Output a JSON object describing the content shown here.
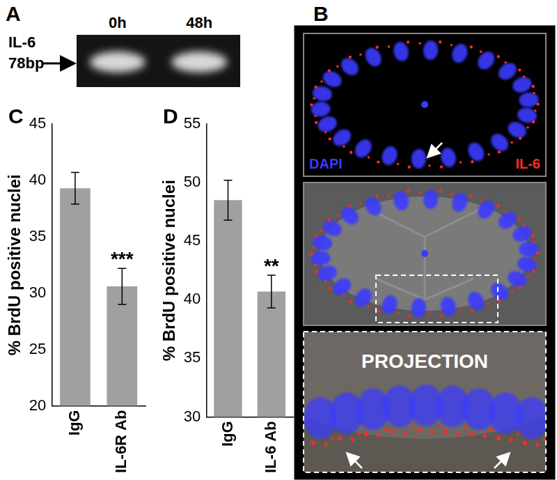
{
  "panels": {
    "A": {
      "label": "A",
      "gene": "IL-6",
      "size": "78bp",
      "lanes": [
        "0h",
        "48h"
      ]
    },
    "B": {
      "label": "B",
      "stains": [
        {
          "text": "DAPI",
          "color": "#3a3aff"
        },
        {
          "text": "IL-6",
          "color": "#ff2a2a"
        }
      ],
      "inset": "PROJECTION"
    }
  },
  "chart_data": [
    {
      "panel": "C",
      "type": "bar",
      "y_label": "% BrdU positive nuclei",
      "categories": [
        "IgG",
        "IL-6R Ab"
      ],
      "values": [
        39.3,
        30.6
      ],
      "errors": [
        1.4,
        1.6
      ],
      "color": "#a0a0a0",
      "ylim": [
        20,
        45
      ],
      "yticks": [
        20,
        25,
        30,
        35,
        40,
        45
      ],
      "grid": false,
      "annotations": [
        {
          "text": "***",
          "category": "IL-6R Ab"
        }
      ]
    },
    {
      "panel": "D",
      "type": "bar",
      "y_label": "% BrdU positive nuclei",
      "categories": [
        "IgG",
        "IL-6 Ab"
      ],
      "values": [
        48.5,
        40.7
      ],
      "errors": [
        1.7,
        1.4
      ],
      "color": "#a0a0a0",
      "ylim": [
        30,
        55
      ],
      "yticks": [
        30,
        35,
        40,
        45,
        50,
        55
      ],
      "grid": false,
      "annotations": [
        {
          "text": "**",
          "category": "IL-6 Ab"
        }
      ]
    }
  ]
}
